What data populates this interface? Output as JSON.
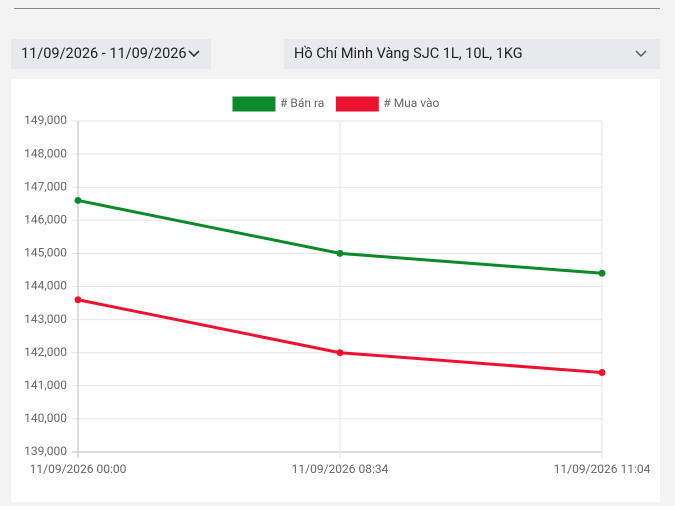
{
  "date_range": "11/09/2026 - 11/09/2026",
  "location_select": "Hồ Chí Minh Vàng SJC 1L, 10L, 1KG",
  "chart_data": {
    "type": "line",
    "categories": [
      "11/09/2026 00:00",
      "11/09/2026 08:34",
      "11/09/2026 11:04"
    ],
    "series": [
      {
        "name": "# Bán ra",
        "color": "#0b8a2a",
        "values": [
          146600,
          145000,
          144400
        ]
      },
      {
        "name": "# Mua vào",
        "color": "#ee1230",
        "values": [
          143600,
          142000,
          141400
        ]
      }
    ],
    "ylim": [
      139000,
      149000
    ],
    "yticks": [
      {
        "value": 139000,
        "label": "139,000"
      },
      {
        "value": 140000,
        "label": "140,000"
      },
      {
        "value": 141000,
        "label": "141,000"
      },
      {
        "value": 142000,
        "label": "142,000"
      },
      {
        "value": 143000,
        "label": "143,000"
      },
      {
        "value": 144000,
        "label": "144,000"
      },
      {
        "value": 145000,
        "label": "145,000"
      },
      {
        "value": 146000,
        "label": "146,000"
      },
      {
        "value": 147000,
        "label": "147,000"
      },
      {
        "value": 148000,
        "label": "148,000"
      },
      {
        "value": 149000,
        "label": "149,000"
      }
    ],
    "grid": true
  }
}
